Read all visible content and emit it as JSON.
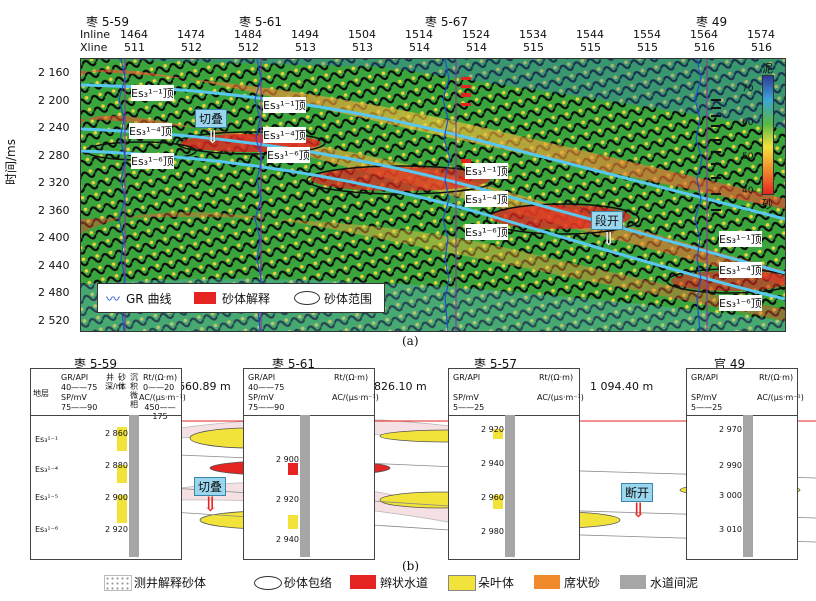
{
  "panel_a": {
    "inline_label": "Inline",
    "xline_label": "Xline",
    "wells": [
      "枣 5-59",
      "枣 5-61",
      "枣 5-67",
      "枣 49"
    ],
    "inline_values": [
      "1464",
      "1474",
      "1484",
      "1494",
      "1504",
      "1514",
      "1524",
      "1534",
      "1544",
      "1554",
      "1564",
      "1574"
    ],
    "xline_values": [
      "511",
      "512",
      "512",
      "513",
      "513",
      "514",
      "514",
      "515",
      "515",
      "515",
      "516",
      "516"
    ],
    "y_axis_label": "时间/ms",
    "y_ticks": [
      "2 160",
      "2 200",
      "2 240",
      "2 280",
      "2 320",
      "2 360",
      "2 400",
      "2 440",
      "2 480",
      "2 520"
    ],
    "colorbar": {
      "top_label": "泥",
      "bottom_label": "砂",
      "ticks": [
        "70",
        "60",
        "50",
        "40"
      ]
    },
    "horizons": {
      "h11_left": "Es₃¹⁻¹顶",
      "h11_mid": "Es₃¹⁻¹顶",
      "h14_left": "Es₃¹⁻⁴顶",
      "h14_mid": "Es₃¹⁻⁴顶",
      "h16_left": "Es₃¹⁻⁶顶",
      "h16_mid": "Es₃¹⁻⁶顶",
      "h11_r": "Es₃¹⁻¹顶",
      "h14_r": "Es₃¹⁻⁴顶",
      "h16_r": "Es₃¹⁻⁶顶",
      "h11_rr": "Es₃¹⁻¹顶",
      "h14_rr": "Es₃¹⁻⁴顶",
      "h16_rr": "Es₃¹⁻⁶顶"
    },
    "callouts": {
      "cut": "切叠",
      "break": "段开"
    },
    "legend": {
      "gr": "GR 曲线",
      "sand": "砂体解释",
      "range": "砂体范围"
    },
    "caption": "(a)"
  },
  "panel_b": {
    "wells": [
      "枣 5-59",
      "枣 5-61",
      "枣 5-57",
      "官 49"
    ],
    "distances": [
      "660.89 m",
      "826.10 m",
      "1 094.40 m"
    ],
    "layer_header": "地层",
    "layers": [
      "Es₃¹⁻¹",
      "Es₃¹⁻⁴",
      "Es₃¹⁻⁵",
      "Es₃¹⁻⁶"
    ],
    "col_gr": "GR/API",
    "col_gr_range": "40——75",
    "col_sp": "SP/mV",
    "col_sp_range_1": "75——90",
    "col_sp_range_2": "5——25",
    "col_depth": "井深/m",
    "col_sand": "砂体",
    "col_facies": "沉积微相",
    "col_rt": "Rt/(Ω·m)",
    "col_rt_range": "0——20",
    "col_ac": "AC/(μs·m⁻¹)",
    "col_ac_range": "450——175",
    "depths_w1": [
      "2 860",
      "2 880",
      "2 900",
      "2 920"
    ],
    "depths_w2": [
      "2 900",
      "2 920",
      "2 940"
    ],
    "depths_w3": [
      "2 920",
      "2 940",
      "2 960",
      "2 980"
    ],
    "depths_w4": [
      "2 970",
      "2 990",
      "3 000",
      "3 010"
    ],
    "callouts": {
      "cut": "切叠",
      "break": "断开"
    },
    "caption": "(b)"
  },
  "legend_bottom": {
    "log_sand": "测井解释砂体",
    "envelope": "砂体包络",
    "braided": "辫状水道",
    "lobe": "朵叶体",
    "sheet": "席状砂",
    "mud": "水道间泥"
  },
  "colors": {
    "braided": "#e52421",
    "lobe": "#f2e33a",
    "sheet": "#f08a2c",
    "mud": "#a6a6a6",
    "horizon": "#58c8f0"
  }
}
